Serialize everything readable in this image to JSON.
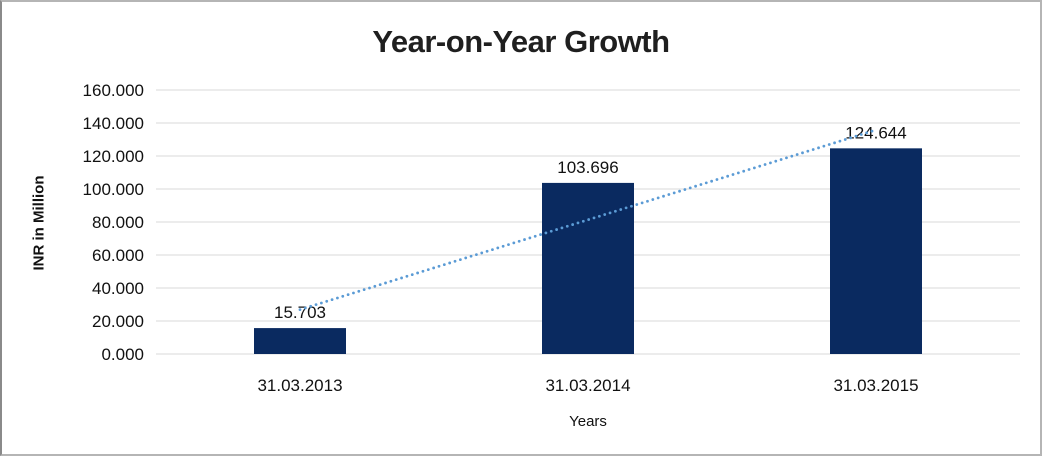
{
  "frame": {
    "background": "#ffffff",
    "border_color": "#b5b5b5"
  },
  "chart_data": {
    "type": "bar",
    "title": "Year-on-Year Growth",
    "xlabel": "Years",
    "ylabel": "INR in Million",
    "categories": [
      "31.03.2013",
      "31.03.2014",
      "31.03.2015"
    ],
    "values": [
      15.703,
      103.696,
      124.644
    ],
    "value_labels": [
      "15.703",
      "103.696",
      "124.644"
    ],
    "ylim": [
      0,
      160
    ],
    "ytick_step": 20,
    "ytick_labels": [
      "0.000",
      "20.000",
      "40.000",
      "60.000",
      "80.000",
      "100.000",
      "120.000",
      "140.000",
      "160.000"
    ],
    "grid": true,
    "legend": false,
    "bar_color": "#0a2a60",
    "gridline_color": "#d9d9d9",
    "label_color": "#111111",
    "title_color": "#1f1f1f",
    "trendline": {
      "type": "linear",
      "style": "dotted",
      "color": "#5b9bd5",
      "fit_values": [
        26.878,
        81.348,
        135.818
      ]
    }
  }
}
